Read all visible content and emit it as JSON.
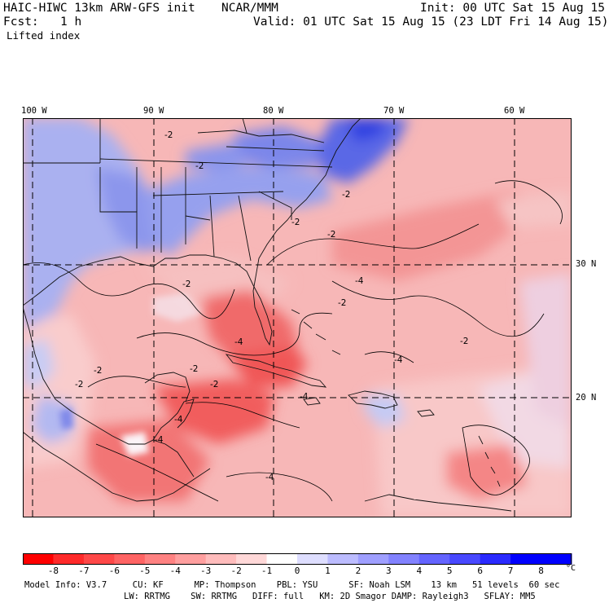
{
  "header": {
    "title": "HAIC-HIWC 13km ARW-GFS init",
    "org": "NCAR/MMM",
    "init": "Init: 00 UTC Sat 15 Aug 15",
    "fcst_label": "Fcst:",
    "fcst_value": "1 h",
    "valid": "Valid: 01 UTC Sat 15 Aug 15 (23 LDT Fri 14 Aug 15)",
    "field": "Lifted index"
  },
  "map": {
    "longitude_labels": [
      "100 W",
      "90 W",
      "80 W",
      "70 W",
      "60 W"
    ],
    "latitude_labels": [
      "30 N",
      "20 N"
    ],
    "contour_labels": [
      "-2",
      "-2",
      "-2",
      "-2",
      "-2",
      "-2",
      "-2",
      "-2",
      "-4",
      "-2",
      "-2",
      "-4",
      "-4",
      "-2",
      "-4",
      "-4",
      "-4",
      "-4",
      "-2"
    ],
    "colors": {
      "ocean": "#f6b1b1",
      "ocean_light": "#f9d3d3",
      "unstable_core": "#f26363",
      "stable_land": "#8d97ec",
      "stable_deep": "#3445e6",
      "near_zero": "#f3f2fb"
    }
  },
  "colorbar": {
    "ticks": [
      "-8",
      "-7",
      "-6",
      "-5",
      "-4",
      "-3",
      "-2",
      "-1",
      "0",
      "1",
      "2",
      "3",
      "4",
      "5",
      "6",
      "7",
      "8"
    ],
    "unit": "°C",
    "colors": [
      "#ff0000",
      "#ff2a2a",
      "#ff4848",
      "#ff6464",
      "#ff8282",
      "#ff9f9f",
      "#ffbcbc",
      "#ffd8d8",
      "#ffffff",
      "#dedeff",
      "#bcbcff",
      "#9f9fff",
      "#8282ff",
      "#6464ff",
      "#4848ff",
      "#2a2aff",
      "#0000ff"
    ]
  },
  "model_info": {
    "line1": "Model Info: V3.7     CU: KF      MP: Thompson    PBL: YSU      SF: Noah LSM    13 km   51 levels  60 sec",
    "line2": "LW: RRTMG    SW: RRTMG   DIFF: full   KM: 2D Smagor DAMP: Rayleigh3   SFLAY: MM5"
  }
}
